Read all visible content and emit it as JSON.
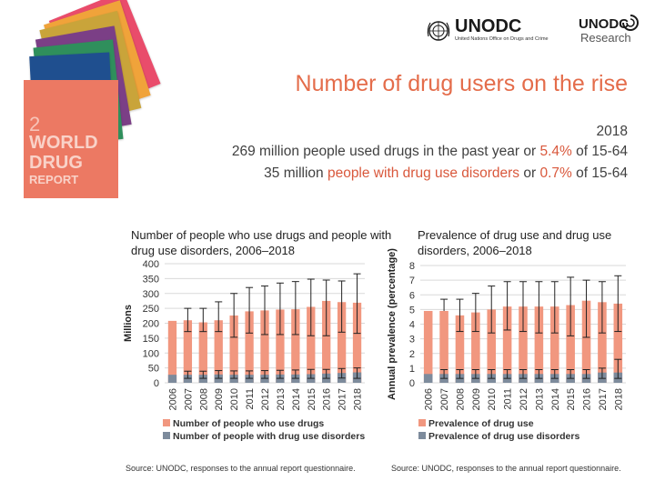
{
  "header": {
    "unodc_logo": "UNODC",
    "unodc_subtitle": "United Nations Office on Drugs and Crime",
    "research_logo_top": "UNODC",
    "research_logo_bottom": "Research"
  },
  "report_cover": {
    "number": "2",
    "line1": "WORLD",
    "line2": "DRUG",
    "line3": "REPORT",
    "colors": [
      "#e94c6b",
      "#f0a33a",
      "#c9a43a",
      "#7b3f86",
      "#2f8f5c",
      "#1f4f8f",
      "#3aa0c8"
    ]
  },
  "slide": {
    "title": "Number of drug users on the rise",
    "year": "2018",
    "line1_a": "269 million people used drugs in the past year or ",
    "line1_b": "5.4%",
    "line1_c": " of 15-64",
    "line2_a": "35 million ",
    "line2_b": "people with drug use disorders",
    "line2_c": " or ",
    "line2_d": "0.7%",
    "line2_e": " of 15-64"
  },
  "colors": {
    "users": "#f1977f",
    "disorders": "#7d8b9c",
    "accent": "#e46c4a"
  },
  "chart_data": [
    {
      "type": "bar",
      "title": "Number of people who use drugs and people with drug use disorders, 2006–2018",
      "ylabel": "Millions",
      "ylim": [
        0,
        400
      ],
      "yticks": [
        0,
        50,
        100,
        150,
        200,
        250,
        300,
        350,
        400
      ],
      "categories": [
        "2006",
        "2007",
        "2008",
        "2009",
        "2010",
        "2011",
        "2012",
        "2013",
        "2014",
        "2015",
        "2016",
        "2017",
        "2018"
      ],
      "series": [
        {
          "name": "Number of people who use drugs",
          "values": [
            208,
            210,
            203,
            210,
            226,
            240,
            243,
            246,
            247,
            255,
            275,
            271,
            269
          ],
          "low": [
            null,
            172,
            172,
            172,
            153,
            167,
            162,
            162,
            162,
            158,
            158,
            170,
            166
          ],
          "high": [
            null,
            250,
            250,
            272,
            300,
            320,
            325,
            335,
            340,
            348,
            345,
            342,
            366
          ]
        },
        {
          "name": "Number of people with drug use disorders",
          "values": [
            27,
            27,
            27,
            28,
            27,
            27,
            27,
            28,
            28,
            29,
            31,
            33,
            35
          ],
          "low": [
            null,
            15,
            15,
            15,
            15,
            15,
            15,
            15,
            15,
            15,
            15,
            16,
            15
          ],
          "high": [
            null,
            39,
            39,
            41,
            40,
            40,
            41,
            42,
            43,
            45,
            45,
            48,
            50
          ]
        }
      ],
      "source": "Source: UNODC, responses to the annual report questionnaire."
    },
    {
      "type": "bar",
      "title": "Prevalence of drug use and drug use disorders, 2006–2018",
      "ylabel": "Annual prevalence (percentage)",
      "ylim": [
        0,
        8
      ],
      "yticks": [
        0,
        1,
        2,
        3,
        4,
        5,
        6,
        7,
        8
      ],
      "categories": [
        "2006",
        "2007",
        "2008",
        "2009",
        "2010",
        "2011",
        "2012",
        "2013",
        "2014",
        "2015",
        "2016",
        "2017",
        "2018"
      ],
      "series": [
        {
          "name": "Prevalence of drug use",
          "values": [
            4.9,
            4.9,
            4.6,
            4.8,
            5.0,
            5.2,
            5.2,
            5.2,
            5.2,
            5.3,
            5.6,
            5.5,
            5.4
          ],
          "low": [
            null,
            null,
            3.5,
            3.5,
            3.4,
            3.6,
            3.5,
            3.4,
            3.4,
            3.2,
            3.1,
            3.4,
            3.5
          ],
          "high": [
            null,
            5.7,
            5.7,
            6.1,
            6.6,
            6.9,
            6.9,
            6.9,
            6.9,
            7.2,
            7.0,
            6.9,
            7.3
          ]
        },
        {
          "name": "Prevalence of drug use disorders",
          "values": [
            0.6,
            0.6,
            0.6,
            0.6,
            0.6,
            0.6,
            0.6,
            0.6,
            0.6,
            0.6,
            0.6,
            0.7,
            0.7
          ],
          "low": [
            null,
            0.3,
            0.3,
            0.3,
            0.3,
            0.3,
            0.3,
            0.3,
            0.3,
            0.3,
            0.3,
            0.3,
            0.3
          ],
          "high": [
            null,
            0.9,
            0.9,
            0.9,
            0.9,
            0.9,
            0.9,
            0.9,
            0.9,
            0.9,
            0.9,
            1.0,
            1.6
          ]
        }
      ],
      "source": "Source: UNODC, responses to the annual report questionnaire."
    }
  ]
}
